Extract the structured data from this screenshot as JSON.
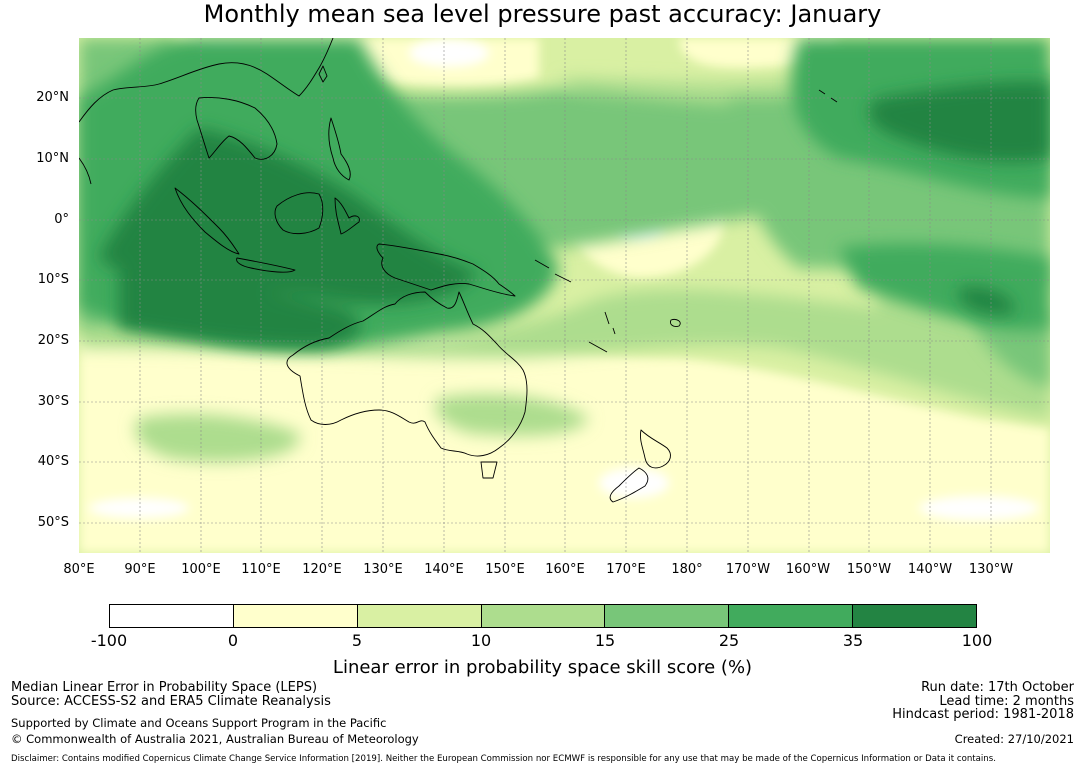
{
  "title": "Monthly mean sea level pressure past accuracy: January",
  "map": {
    "lat_labels": [
      "20°N",
      "10°N",
      "0°",
      "10°S",
      "20°S",
      "30°S",
      "40°S",
      "50°S"
    ],
    "lon_labels": [
      "80°E",
      "90°E",
      "100°E",
      "110°E",
      "120°E",
      "130°E",
      "140°E",
      "150°E",
      "160°E",
      "170°E",
      "180°",
      "170°W",
      "160°W",
      "150°W",
      "140°W",
      "130°W"
    ],
    "lat_range": [
      -55,
      30
    ],
    "lon_range": [
      80,
      240
    ],
    "region": "Indo-Pacific, Maritime Continent, Australia, New Zealand and South Pacific"
  },
  "legend": {
    "ticks": [
      "-100",
      "0",
      "5",
      "10",
      "15",
      "25",
      "35",
      "100"
    ],
    "colors": [
      "#ffffff",
      "#ffffcc",
      "#d9f0a3",
      "#addd8e",
      "#78c679",
      "#41ab5d",
      "#238443"
    ],
    "label": "Linear error in probability space skill score (%)"
  },
  "footer": {
    "method": "Median Linear Error in Probability Space (LEPS)",
    "source": "Source: ACCESS-S2 and ERA5 Climate Reanalysis",
    "support": "Supported by Climate and Oceans Support Program in the Pacific",
    "copyright": "© Commonwealth of Australia 2021, Australian Bureau of Meteorology",
    "run_date": "Run date: 17th October",
    "lead_time": "Lead time: 2 months",
    "hindcast": "Hindcast period: 1981-2018",
    "created": "Created: 27/10/2021",
    "disclaimer": "Disclaimer: Contains modified Copernicus Climate Change Service Information [2019]. Neither the European Commission nor ECMWF is responsible for any use that may be made of the Copernicus Information or Data it contains."
  }
}
